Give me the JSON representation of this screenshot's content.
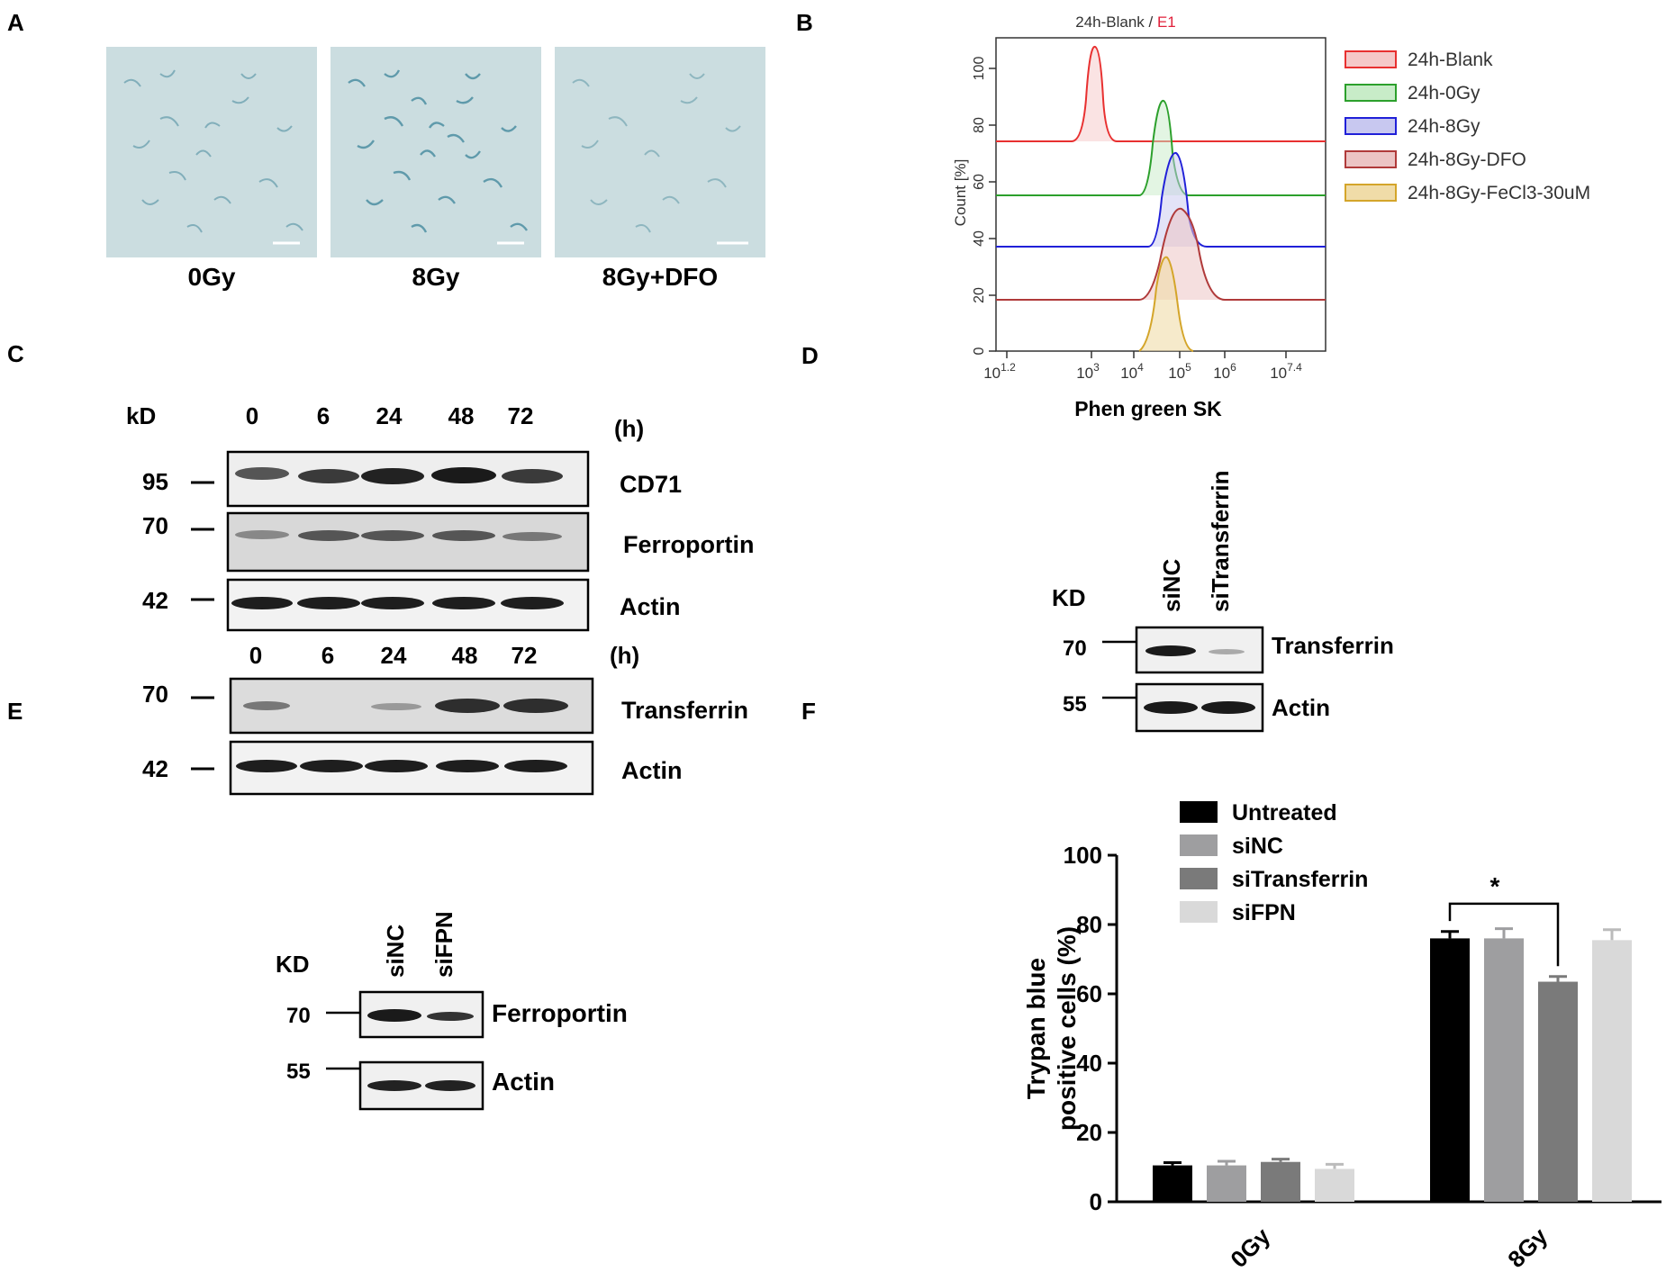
{
  "panels": {
    "a": "A",
    "b": "B",
    "c": "C",
    "d": "D",
    "e": "E",
    "f": "F"
  },
  "panel_a": {
    "captions": [
      "0Gy",
      "8Gy",
      "8Gy+DFO"
    ]
  },
  "panel_b": {
    "title_part1": "24h-Blank /",
    "title_part2": "E1",
    "ylabel": "Count [%]",
    "xlabel": "Phen green SK",
    "y_ticks": [
      "0",
      "20",
      "40",
      "60",
      "80",
      "100"
    ],
    "x_ticks": [
      {
        "base": "10",
        "exp": "1.2"
      },
      {
        "base": "10",
        "exp": "3"
      },
      {
        "base": "10",
        "exp": "4"
      },
      {
        "base": "10",
        "exp": "5"
      },
      {
        "base": "10",
        "exp": "6"
      },
      {
        "base": "10",
        "exp": "7.4"
      }
    ],
    "legend": [
      "24h-Blank",
      "24h-0Gy",
      "24h-8Gy",
      "24h-8Gy-DFO",
      "24h-8Gy-FeCl3-30uM"
    ],
    "colors": [
      "#e83030",
      "#2ca02c",
      "#2020d8",
      "#b03a3a",
      "#d4a52a"
    ]
  },
  "panel_c": {
    "kd_label": "kD",
    "time_labels_top": [
      "0",
      "6",
      "24",
      "48",
      "72"
    ],
    "time_unit": "(h)",
    "mw_top": [
      "95",
      "70",
      "42"
    ],
    "proteins_top": [
      "CD71",
      "Ferroportin",
      "Actin"
    ],
    "time_labels_bottom": [
      "0",
      "6",
      "24",
      "48",
      "72"
    ],
    "mw_bottom": [
      "70",
      "42"
    ],
    "proteins_bottom": [
      "Transferrin",
      "Actin"
    ]
  },
  "panel_d": {
    "kd_label": "KD",
    "lanes": [
      "siNC",
      "siTransferrin"
    ],
    "mw": [
      "70",
      "55"
    ],
    "proteins": [
      "Transferrin",
      "Actin"
    ]
  },
  "panel_e": {
    "kd_label": "KD",
    "lanes": [
      "siNC",
      "siFPN"
    ],
    "mw": [
      "70",
      "55"
    ],
    "proteins": [
      "Ferroportin",
      "Actin"
    ]
  },
  "chart_data": {
    "type": "bar",
    "categories": [
      "0Gy",
      "8Gy"
    ],
    "series": [
      {
        "name": "Untreated",
        "values": [
          10.5,
          76
        ],
        "errors": [
          0.8,
          2
        ],
        "color": "#000000"
      },
      {
        "name": "siNC",
        "values": [
          10.5,
          76
        ],
        "errors": [
          1.2,
          2.8
        ],
        "color": "#9e9ea0"
      },
      {
        "name": "siTransferrin",
        "values": [
          11.5,
          63.5
        ],
        "errors": [
          0.8,
          1.5
        ],
        "color": "#7a7a7a"
      },
      {
        "name": "siFPN",
        "values": [
          9.5,
          75.5
        ],
        "errors": [
          1.3,
          3
        ],
        "color": "#d9d9d9"
      }
    ],
    "ylabel_line1": "Trypan blue",
    "ylabel_line2": "positive cells (%)",
    "y_ticks": [
      "0",
      "20",
      "40",
      "60",
      "80",
      "100"
    ],
    "ylim": [
      0,
      100
    ],
    "significance": "*",
    "legend_placement": "top-left"
  }
}
